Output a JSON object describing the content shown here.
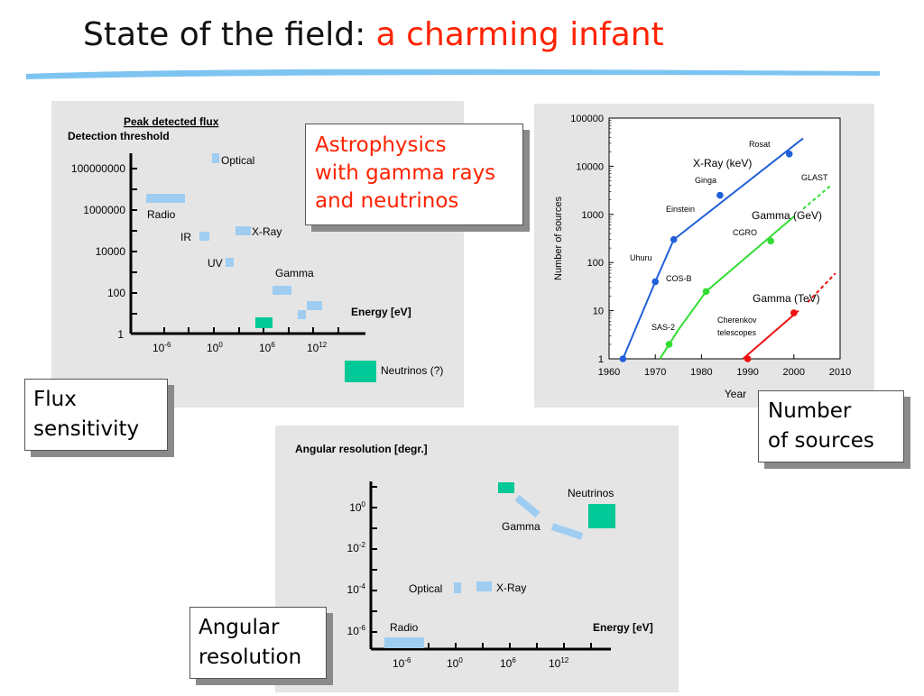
{
  "title": {
    "main": "State of the field:",
    "highlight": "a charming infant"
  },
  "callouts": {
    "astro": [
      "Astrophysics",
      "with gamma rays",
      "and neutrinos"
    ],
    "flux": [
      "Flux",
      "sensitivity"
    ],
    "number": [
      "Number",
      "of sources"
    ],
    "angular": [
      "Angular",
      "resolution"
    ]
  },
  "colors": {
    "accent": "#ff2200",
    "underline": "#7ec4f0",
    "box_blue": "#9fcdf2",
    "neutrino_green": "#00c896"
  },
  "flux_chart": {
    "header_line1": "Peak detected flux",
    "header_line2": "Detection threshold",
    "y_ticks": [
      "100000000",
      "1000000",
      "10000",
      "100",
      "1"
    ],
    "x_ticks": [
      {
        "base": "10",
        "exp": "-6"
      },
      {
        "base": "10",
        "exp": "0"
      },
      {
        "base": "10",
        "exp": "6"
      },
      {
        "base": "10",
        "exp": "12"
      }
    ],
    "xlabel": "Energy [eV]",
    "labels": {
      "optical": "Optical",
      "radio": "Radio",
      "ir": "IR",
      "xray": "X-Ray",
      "uv": "UV",
      "gamma": "Gamma",
      "neutrinos": "Neutrinos (?)"
    }
  },
  "chart_data": {
    "type": "line",
    "x": [
      1960,
      1970,
      1980,
      1990,
      2000,
      2010
    ],
    "xlabel": "Year",
    "ylabel": "Number of sources",
    "ylim": [
      1,
      100000
    ],
    "xlim": [
      1960,
      2010
    ],
    "y_scale": "log",
    "y_ticks": [
      "100000",
      "10000",
      "1000",
      "100",
      "10",
      "1"
    ],
    "series": [
      {
        "name": "X-Ray (keV)",
        "color": "#2060d8",
        "points": [
          [
            1963,
            1,
            ""
          ],
          [
            1970,
            40,
            "Uhuru"
          ],
          [
            1974,
            300,
            ""
          ],
          [
            1984,
            2500,
            "Ginga"
          ],
          [
            1999,
            18000,
            "Rosat"
          ]
        ],
        "fit": [
          [
            1963,
            1
          ],
          [
            1970,
            40
          ],
          [
            1974,
            300
          ],
          [
            2002,
            38000
          ]
        ]
      },
      {
        "name": "Gamma (GeV)",
        "color": "#33dd33",
        "points": [
          [
            1973,
            2,
            "SAS-2"
          ],
          [
            1981,
            25,
            "COS-B"
          ],
          [
            1995,
            280,
            "CGRO"
          ]
        ],
        "fit": [
          [
            1971,
            1
          ],
          [
            1975,
            4
          ],
          [
            1981,
            25
          ],
          [
            2000,
            900
          ]
        ],
        "projection": [
          [
            2002,
            1300
          ],
          [
            2008,
            4000
          ]
        ],
        "projection_label": "GLAST"
      },
      {
        "name": "Gamma (TeV)",
        "color": "#ee1111",
        "points": [
          [
            1990,
            1,
            ""
          ],
          [
            2000,
            9,
            "Cherenkov telescopes"
          ]
        ],
        "fit": [
          [
            1989,
            1
          ],
          [
            2001,
            10
          ]
        ],
        "projection": [
          [
            2003,
            15
          ],
          [
            2009,
            60
          ]
        ]
      }
    ],
    "annotations": [
      "Einstein",
      "Rosat",
      "Ginga",
      "Uhuru",
      "CGRO",
      "COS-B",
      "SAS-2",
      "GLAST",
      "Cherenkov",
      "telescopes"
    ]
  },
  "angular_chart": {
    "header": "Angular resolution [degr.]",
    "y_ticks": [
      {
        "base": "10",
        "exp": "0"
      },
      {
        "base": "10",
        "exp": "-2"
      },
      {
        "base": "10",
        "exp": "-4"
      },
      {
        "base": "10",
        "exp": "-6"
      }
    ],
    "x_ticks": [
      {
        "base": "10",
        "exp": "-6"
      },
      {
        "base": "10",
        "exp": "0"
      },
      {
        "base": "10",
        "exp": "6"
      },
      {
        "base": "10",
        "exp": "12"
      }
    ],
    "xlabel": "Energy [eV]",
    "labels": {
      "neutrinos": "Neutrinos",
      "gamma": "Gamma",
      "optical": "Optical",
      "xray": "X-Ray",
      "radio": "Radio"
    }
  }
}
